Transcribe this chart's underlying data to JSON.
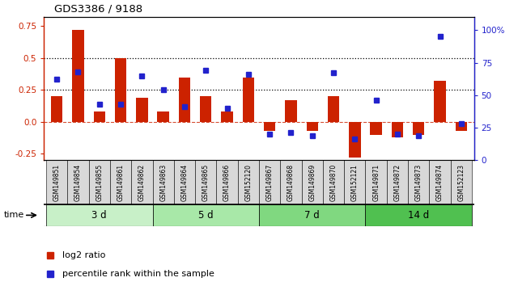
{
  "title": "GDS3386 / 9188",
  "samples": [
    "GSM149851",
    "GSM149854",
    "GSM149855",
    "GSM149861",
    "GSM149862",
    "GSM149863",
    "GSM149864",
    "GSM149865",
    "GSM149866",
    "GSM152120",
    "GSM149867",
    "GSM149868",
    "GSM149869",
    "GSM149870",
    "GSM152121",
    "GSM149871",
    "GSM149872",
    "GSM149873",
    "GSM149874",
    "GSM152123"
  ],
  "log2_ratio": [
    0.2,
    0.72,
    0.08,
    0.5,
    0.19,
    0.08,
    0.35,
    0.2,
    0.08,
    0.35,
    -0.07,
    0.17,
    -0.07,
    0.2,
    -0.28,
    -0.1,
    -0.12,
    -0.1,
    0.32,
    -0.07
  ],
  "percentile": [
    62,
    68,
    43,
    43,
    65,
    54,
    41,
    69,
    40,
    66,
    20,
    21,
    19,
    67,
    16,
    46,
    20,
    19,
    95,
    28
  ],
  "groups": [
    {
      "label": "3 d",
      "start": 0,
      "end": 5,
      "color": "#c8f0c8"
    },
    {
      "label": "5 d",
      "start": 5,
      "end": 10,
      "color": "#a8e8a8"
    },
    {
      "label": "7 d",
      "start": 10,
      "end": 15,
      "color": "#80d880"
    },
    {
      "label": "14 d",
      "start": 15,
      "end": 20,
      "color": "#50c050"
    }
  ],
  "bar_color": "#cc2200",
  "dot_color": "#2222cc",
  "ylim_left": [
    -0.3,
    0.82
  ],
  "ylim_right": [
    0,
    110
  ],
  "yticks_left": [
    -0.25,
    0.0,
    0.25,
    0.5,
    0.75
  ],
  "yticks_right": [
    0,
    25,
    50,
    75,
    100
  ],
  "hlines": [
    0.25,
    0.5
  ],
  "bar_width": 0.55,
  "bg_color": "white"
}
